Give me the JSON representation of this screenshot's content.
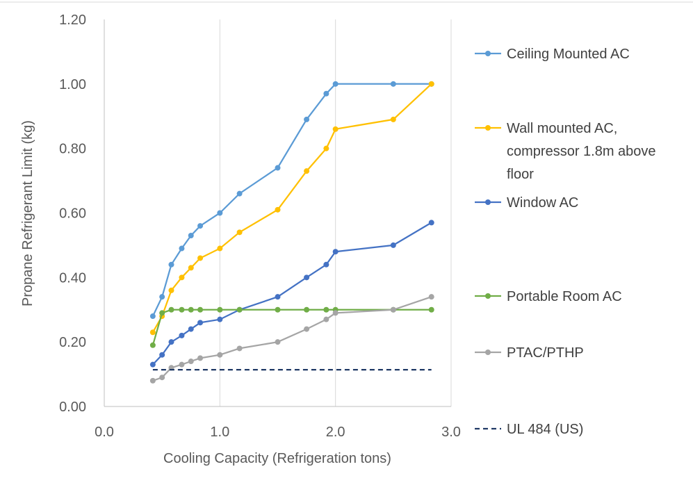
{
  "chart_data": {
    "type": "line",
    "title": "",
    "xlabel": "Cooling Capacity (Refrigeration tons)",
    "ylabel": "Propane Refrigerant  Limit (kg)",
    "xlim": [
      0,
      3
    ],
    "ylim": [
      0,
      1.2
    ],
    "x_ticks": [
      "0.0",
      "1.0",
      "2.0",
      "3.0"
    ],
    "y_ticks": [
      "0.00",
      "0.20",
      "0.40",
      "0.60",
      "0.80",
      "1.00",
      "1.20"
    ],
    "grid": "vertical",
    "legend_position": "right",
    "series": [
      {
        "name": "Ceiling Mounted AC",
        "color": "#5B9BD5",
        "x": [
          0.42,
          0.5,
          0.58,
          0.67,
          0.75,
          0.83,
          1.0,
          1.17,
          1.5,
          1.75,
          1.92,
          2.0,
          2.5,
          2.83
        ],
        "y": [
          0.28,
          0.34,
          0.44,
          0.49,
          0.53,
          0.56,
          0.6,
          0.66,
          0.74,
          0.89,
          0.97,
          1.0,
          1.0,
          1.0
        ]
      },
      {
        "name": "Wall mounted AC, compressor 1.8m above floor",
        "color": "#FFC000",
        "x": [
          0.42,
          0.5,
          0.58,
          0.67,
          0.75,
          0.83,
          1.0,
          1.17,
          1.5,
          1.75,
          1.92,
          2.0,
          2.5,
          2.83
        ],
        "y": [
          0.23,
          0.28,
          0.36,
          0.4,
          0.43,
          0.46,
          0.49,
          0.54,
          0.61,
          0.73,
          0.8,
          0.86,
          0.89,
          1.0
        ]
      },
      {
        "name": "Window AC",
        "color": "#4472C4",
        "x": [
          0.42,
          0.5,
          0.58,
          0.67,
          0.75,
          0.83,
          1.0,
          1.17,
          1.5,
          1.75,
          1.92,
          2.0,
          2.5,
          2.83
        ],
        "y": [
          0.13,
          0.16,
          0.2,
          0.22,
          0.24,
          0.26,
          0.27,
          0.3,
          0.34,
          0.4,
          0.44,
          0.48,
          0.5,
          0.57
        ]
      },
      {
        "name": "Portable Room AC",
        "color": "#70AD47",
        "x": [
          0.42,
          0.5,
          0.58,
          0.67,
          0.75,
          0.83,
          1.0,
          1.17,
          1.5,
          1.75,
          1.92,
          2.0,
          2.5,
          2.83
        ],
        "y": [
          0.19,
          0.29,
          0.3,
          0.3,
          0.3,
          0.3,
          0.3,
          0.3,
          0.3,
          0.3,
          0.3,
          0.3,
          0.3,
          0.3
        ]
      },
      {
        "name": "PTAC/PTHP",
        "color": "#A5A5A5",
        "x": [
          0.42,
          0.5,
          0.58,
          0.67,
          0.75,
          0.83,
          1.0,
          1.17,
          1.5,
          1.75,
          1.92,
          2.0,
          2.5,
          2.83
        ],
        "y": [
          0.08,
          0.09,
          0.12,
          0.13,
          0.14,
          0.15,
          0.16,
          0.18,
          0.2,
          0.24,
          0.27,
          0.29,
          0.3,
          0.34
        ]
      },
      {
        "name": "UL 484 (US)",
        "color": "#1F3864",
        "dashed": true,
        "x": [
          0.42,
          2.83
        ],
        "y": [
          0.114,
          0.114
        ]
      }
    ]
  }
}
